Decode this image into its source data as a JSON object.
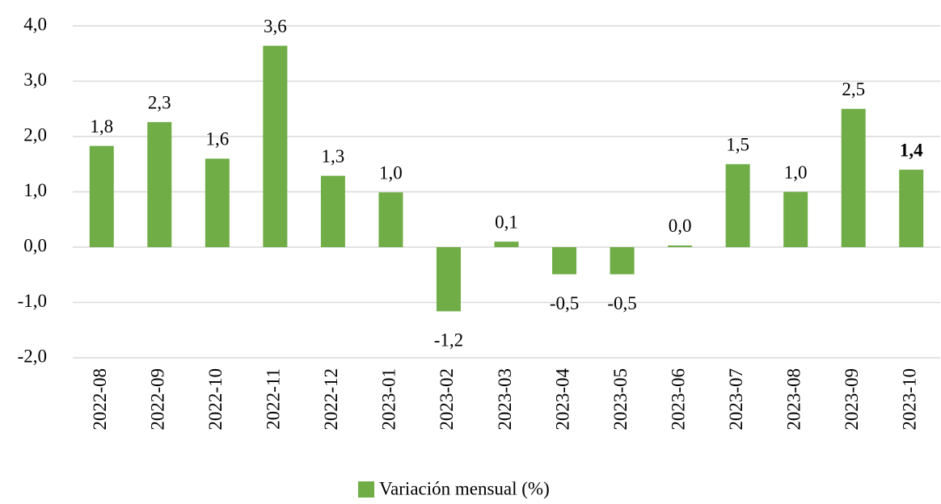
{
  "chart_data": {
    "type": "bar",
    "categories": [
      "2022-08",
      "2022-09",
      "2022-10",
      "2022-11",
      "2022-12",
      "2023-01",
      "2023-02",
      "2023-03",
      "2023-04",
      "2023-05",
      "2023-06",
      "2023-07",
      "2023-08",
      "2023-09",
      "2023-10"
    ],
    "series": [
      {
        "name": "Variación mensual (%)",
        "color": "#70ad47",
        "values": [
          1.83,
          2.26,
          1.6,
          3.64,
          1.29,
          0.99,
          -1.16,
          0.1,
          -0.49,
          -0.49,
          0.03,
          1.5,
          1.0,
          2.5,
          1.4
        ],
        "value_labels": [
          "1,8",
          "2,3",
          "1,6",
          "3,6",
          "1,3",
          "1,0",
          "-1,2",
          "0,1",
          "-0,5",
          "-0,5",
          "0,0",
          "1,5",
          "1,0",
          "2,5",
          "1,4"
        ]
      }
    ],
    "ylim": [
      -2,
      4
    ],
    "yticks": [
      {
        "value": -2,
        "label": "-2,0"
      },
      {
        "value": -1,
        "label": "-1,0"
      },
      {
        "value": 0,
        "label": "0,0"
      },
      {
        "value": 1,
        "label": "1,0"
      },
      {
        "value": 2,
        "label": "2,0"
      },
      {
        "value": 3,
        "label": "3,0"
      },
      {
        "value": 4,
        "label": "4,0"
      }
    ],
    "grid": true,
    "legend": "bottom"
  }
}
